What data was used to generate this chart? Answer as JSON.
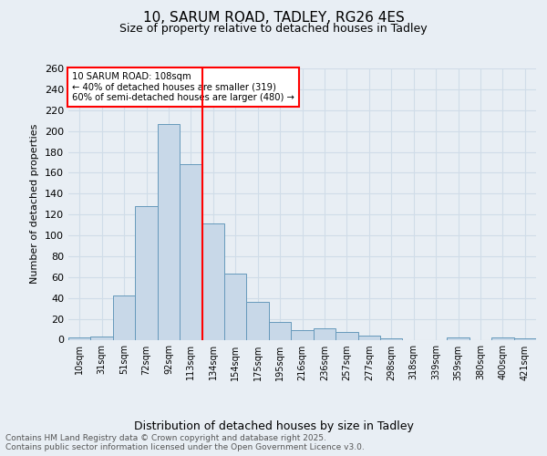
{
  "title_line1": "10, SARUM ROAD, TADLEY, RG26 4ES",
  "title_line2": "Size of property relative to detached houses in Tadley",
  "xlabel": "Distribution of detached houses by size in Tadley",
  "ylabel": "Number of detached properties",
  "categories": [
    "10sqm",
    "31sqm",
    "51sqm",
    "72sqm",
    "92sqm",
    "113sqm",
    "134sqm",
    "154sqm",
    "175sqm",
    "195sqm",
    "216sqm",
    "236sqm",
    "257sqm",
    "277sqm",
    "298sqm",
    "318sqm",
    "339sqm",
    "359sqm",
    "380sqm",
    "400sqm",
    "421sqm"
  ],
  "values": [
    2,
    3,
    42,
    128,
    207,
    168,
    111,
    63,
    36,
    17,
    9,
    11,
    7,
    4,
    1,
    0,
    0,
    2,
    0,
    2,
    1
  ],
  "bar_color": "#c8d8e8",
  "bar_edge_color": "#6699bb",
  "grid_color": "#d0dce8",
  "vline_x": 5.5,
  "vline_color": "red",
  "annotation_title": "10 SARUM ROAD: 108sqm",
  "annotation_line2": "← 40% of detached houses are smaller (319)",
  "annotation_line3": "60% of semi-detached houses are larger (480) →",
  "annotation_box_color": "red",
  "annotation_text_color": "black",
  "footer_line1": "Contains HM Land Registry data © Crown copyright and database right 2025.",
  "footer_line2": "Contains public sector information licensed under the Open Government Licence v3.0.",
  "ylim": [
    0,
    260
  ],
  "yticks": [
    0,
    20,
    40,
    60,
    80,
    100,
    120,
    140,
    160,
    180,
    200,
    220,
    240,
    260
  ],
  "background_color": "#e8eef4",
  "plot_background_color": "#e8eef4"
}
